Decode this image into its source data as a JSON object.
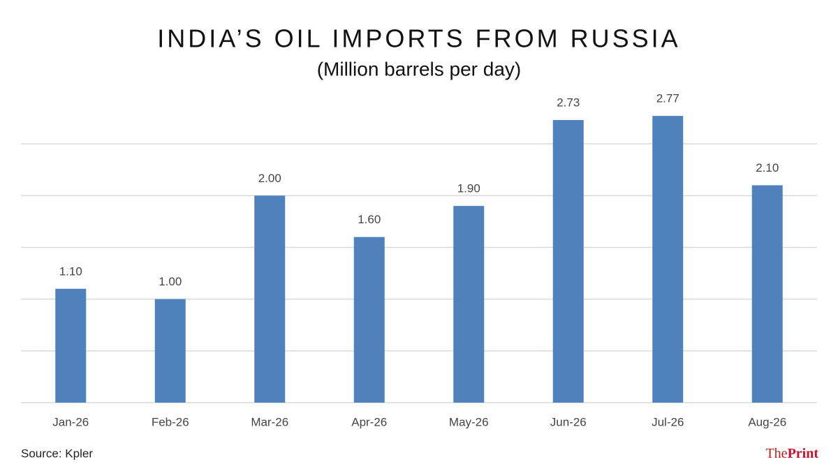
{
  "chart_data": {
    "type": "bar",
    "title": "INDIA’S OIL IMPORTS FROM RUSSIA",
    "subtitle": "(Million barrels per day)",
    "categories": [
      "Jan-26",
      "Feb-26",
      "Mar-26",
      "Apr-26",
      "May-26",
      "Jun-26",
      "Jul-26",
      "Aug-26"
    ],
    "values": [
      1.1,
      1.0,
      2.0,
      1.6,
      1.9,
      2.73,
      2.77,
      2.1
    ],
    "value_labels": [
      "1.10",
      "1.00",
      "2.00",
      "1.60",
      "1.90",
      "2.73",
      "2.77",
      "2.10"
    ],
    "color": "#4f81bd",
    "ylim": [
      0,
      3.0
    ],
    "yticks": [
      0,
      0.5,
      1.0,
      1.5,
      2.0,
      2.5
    ],
    "grid": true,
    "source": "Source: Kpler",
    "brand": {
      "prefix": "The",
      "name": "Print"
    }
  }
}
